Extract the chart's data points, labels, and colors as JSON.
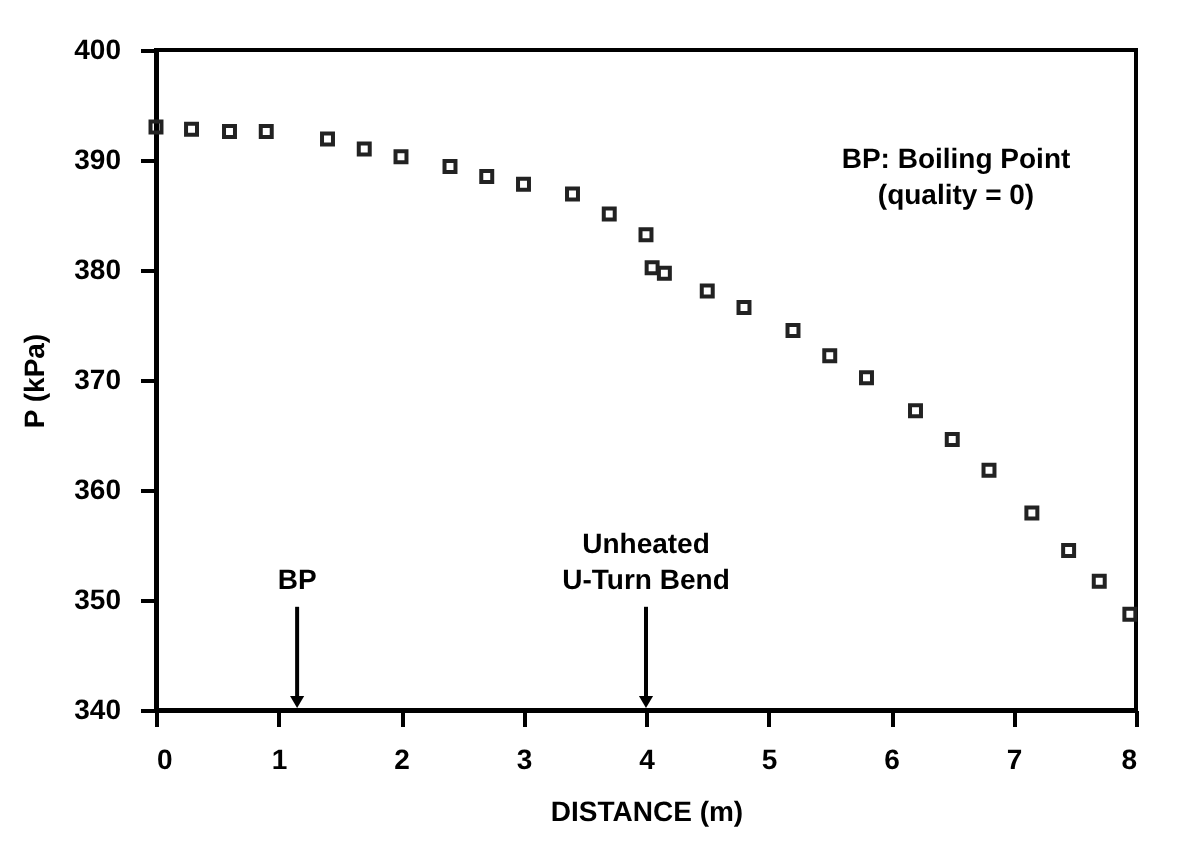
{
  "chart_data": {
    "type": "scatter",
    "xlabel": "DISTANCE (m)",
    "ylabel": "P (kPa)",
    "x": [
      0.0,
      0.29,
      0.6,
      0.9,
      1.4,
      1.7,
      2.0,
      2.4,
      2.7,
      3.0,
      3.4,
      3.7,
      4.0,
      4.05,
      4.15,
      4.5,
      4.8,
      5.2,
      5.5,
      5.8,
      6.2,
      6.5,
      6.8,
      7.15,
      7.45,
      7.7,
      7.95
    ],
    "series": [
      {
        "color": "#222222",
        "values": [
          393.0,
          392.8,
          392.6,
          392.6,
          391.9,
          391.0,
          390.3,
          389.4,
          388.5,
          387.8,
          386.9,
          385.1,
          383.2,
          380.2,
          379.7,
          378.1,
          376.6,
          374.5,
          372.2,
          370.2,
          367.2,
          364.6,
          361.8,
          357.9,
          354.5,
          351.7,
          348.7
        ]
      }
    ],
    "marker": "square",
    "xlim": [
      0,
      8
    ],
    "ylim": [
      340,
      400
    ],
    "xticks": [
      0,
      1,
      2,
      3,
      4,
      5,
      6,
      7,
      8
    ],
    "yticks": [
      340,
      350,
      360,
      370,
      380,
      390,
      400
    ],
    "grid": false,
    "annotations": [
      "BP: Boiling Point\n(quality = 0)",
      "BP",
      "Unheated\nU-Turn Bend"
    ]
  }
}
